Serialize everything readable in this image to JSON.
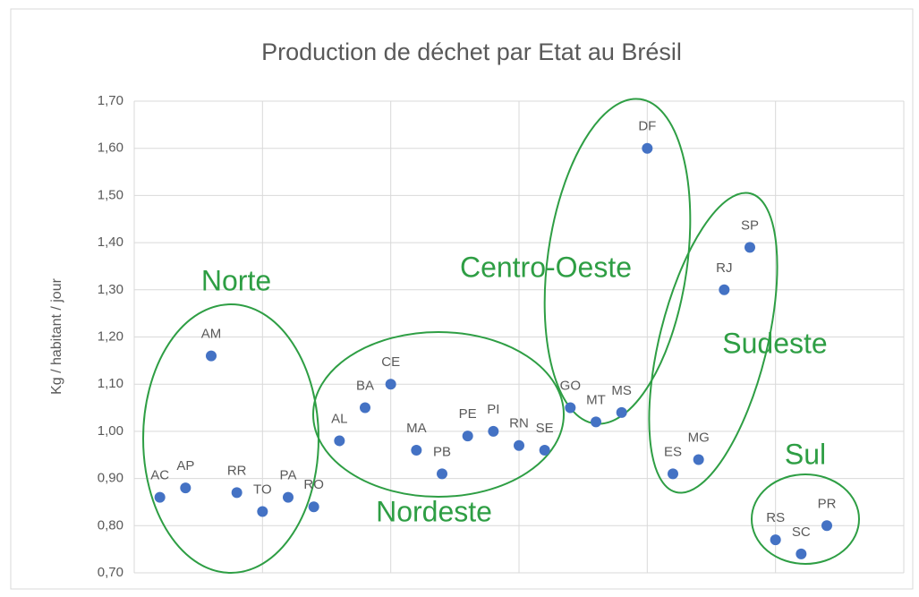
{
  "chart_data": {
    "type": "scatter",
    "title": "Production de déchet par Etat au Brésil",
    "y_label": "Kg / habitant / jour",
    "color": "#4472c4",
    "point_labels": [
      "AC",
      "AP",
      "AM",
      "RR",
      "TO",
      "PA",
      "RO",
      "AL",
      "BA",
      "CE",
      "MA",
      "PB",
      "PE",
      "PI",
      "RN",
      "SE",
      "GO",
      "MT",
      "MS",
      "DF",
      "ES",
      "MG",
      "RJ",
      "SP",
      "RS",
      "SC",
      "PR"
    ],
    "x": [
      1,
      2,
      3,
      4,
      5,
      6,
      7,
      8,
      9,
      10,
      11,
      12,
      13,
      14,
      15,
      16,
      17,
      18,
      19,
      20,
      21,
      22,
      23,
      24,
      25,
      26,
      27
    ],
    "values": [
      0.86,
      0.88,
      1.16,
      0.87,
      0.83,
      0.86,
      0.84,
      0.98,
      1.05,
      1.1,
      0.96,
      0.91,
      0.99,
      1.0,
      0.97,
      0.96,
      1.05,
      1.02,
      1.04,
      1.6,
      0.91,
      0.94,
      1.3,
      1.39,
      0.77,
      0.74,
      0.8
    ],
    "xlim": [
      0,
      30
    ],
    "xticks": [
      0,
      5,
      10,
      15,
      20,
      25,
      30
    ],
    "ylim": [
      0.7,
      1.7
    ],
    "yticks": [
      {
        "value": 0.7,
        "label": "0,70"
      },
      {
        "value": 0.8,
        "label": "0,80"
      },
      {
        "value": 0.9,
        "label": "0,90"
      },
      {
        "value": 1.0,
        "label": "1,00"
      },
      {
        "value": 1.1,
        "label": "1,10"
      },
      {
        "value": 1.2,
        "label": "1,20"
      },
      {
        "value": 1.3,
        "label": "1,30"
      },
      {
        "value": 1.4,
        "label": "1,40"
      },
      {
        "value": 1.5,
        "label": "1,50"
      },
      {
        "value": 1.6,
        "label": "1,60"
      },
      {
        "value": 1.7,
        "label": "1,70"
      }
    ],
    "grid": true,
    "annotations": [
      "Norte",
      "Nordeste",
      "Centro-Oeste",
      "Sudeste",
      "Sul"
    ],
    "annotation_color": "#2e9e44"
  }
}
